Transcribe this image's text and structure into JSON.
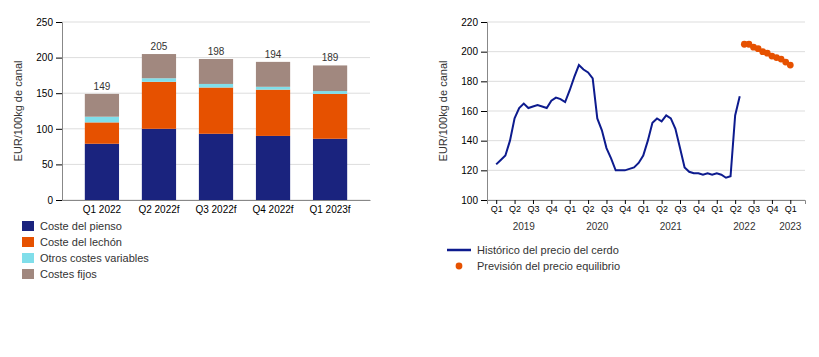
{
  "chart_data": [
    {
      "type": "bar",
      "stacked": true,
      "grid": true,
      "legend": "bottom",
      "categories": [
        "Q1 2022",
        "Q2 2022f",
        "Q3 2022f",
        "Q4 2022f",
        "Q1 2023f"
      ],
      "series": [
        {
          "name": "Coste del pienso",
          "color": "#1a237e",
          "values": [
            79,
            100,
            93,
            90,
            86
          ]
        },
        {
          "name": "Coste del lechón",
          "color": "#e65100",
          "values": [
            30,
            66,
            65,
            65,
            63
          ]
        },
        {
          "name": "Otros costes variables",
          "color": "#80deea",
          "values": [
            8,
            5,
            5,
            4,
            4
          ]
        },
        {
          "name": "Costes fijos",
          "color": "#a1887f",
          "values": [
            32,
            34,
            35,
            35,
            36
          ]
        }
      ],
      "totals": [
        149,
        205,
        198,
        194,
        189
      ],
      "y_label": "EUR/100kg de canal",
      "ylim": [
        0,
        250
      ],
      "yticks": [
        0,
        50,
        100,
        150,
        200,
        250
      ]
    },
    {
      "type": "line",
      "grid": true,
      "legend": "bottom",
      "series": [
        {
          "name": "Histórico del precio del cerdo",
          "type": "line",
          "color": "#0d1b8e",
          "x": [
            0,
            0.25,
            0.5,
            0.75,
            1.0,
            1.25,
            1.5,
            1.75,
            2.0,
            2.25,
            2.5,
            2.75,
            3.0,
            3.25,
            3.5,
            3.75,
            4.0,
            4.25,
            4.5,
            4.75,
            5.0,
            5.25,
            5.5,
            5.75,
            6.0,
            6.25,
            6.5,
            6.75,
            7.0,
            7.25,
            7.5,
            7.75,
            8.0,
            8.25,
            8.5,
            8.75,
            9.0,
            9.25,
            9.5,
            9.75,
            10.0,
            10.25,
            10.5,
            10.75,
            11.0,
            11.25,
            11.5,
            11.75,
            12.0,
            12.25,
            12.5,
            12.75,
            13.0,
            13.25
          ],
          "values": [
            124,
            127,
            130,
            140,
            155,
            162,
            165,
            162,
            163,
            164,
            163,
            162,
            167,
            169,
            168,
            166,
            174,
            183,
            191,
            188,
            186,
            182,
            155,
            147,
            135,
            128,
            120,
            120,
            120,
            121,
            122,
            125,
            130,
            140,
            152,
            155,
            153,
            157,
            155,
            148,
            135,
            122,
            119,
            118,
            118,
            117,
            118,
            117,
            118,
            117,
            115,
            116,
            157,
            170
          ]
        },
        {
          "name": "Previsión del precio equilibrio",
          "type": "scatter",
          "marker": "circle",
          "color": "#e65100",
          "x": [
            13.5,
            13.75,
            14.0,
            14.25,
            14.5,
            14.75,
            15.0,
            15.25,
            15.5,
            15.75,
            16.0
          ],
          "values": [
            205,
            205,
            203,
            202,
            200,
            199,
            197,
            196,
            195,
            193,
            191
          ]
        }
      ],
      "y_label": "EUR/100kg de canal",
      "ylim": [
        100,
        220
      ],
      "yticks": [
        100,
        120,
        140,
        160,
        180,
        200,
        220
      ],
      "xlim": [
        -0.5,
        16.8
      ],
      "xticks": [
        {
          "value": 0,
          "label": "Q1"
        },
        {
          "value": 1,
          "label": "Q2"
        },
        {
          "value": 2,
          "label": "Q3"
        },
        {
          "value": 3,
          "label": "Q4"
        },
        {
          "value": 4,
          "label": "Q1"
        },
        {
          "value": 5,
          "label": "Q2"
        },
        {
          "value": 6,
          "label": "Q3"
        },
        {
          "value": 7,
          "label": "Q4"
        },
        {
          "value": 8,
          "label": "Q1"
        },
        {
          "value": 9,
          "label": "Q2"
        },
        {
          "value": 10,
          "label": "Q3"
        },
        {
          "value": 11,
          "label": "Q4"
        },
        {
          "value": 12,
          "label": "Q1"
        },
        {
          "value": 13,
          "label": "Q2"
        },
        {
          "value": 14,
          "label": "Q3"
        },
        {
          "value": 15,
          "label": "Q4"
        },
        {
          "value": 16,
          "label": "Q1"
        }
      ],
      "annotations": [
        {
          "text": "2019",
          "x": 1.5
        },
        {
          "text": "2020",
          "x": 5.5
        },
        {
          "text": "2021",
          "x": 9.5
        },
        {
          "text": "2022",
          "x": 13.5
        },
        {
          "text": "2023",
          "x": 16.0
        }
      ]
    }
  ]
}
